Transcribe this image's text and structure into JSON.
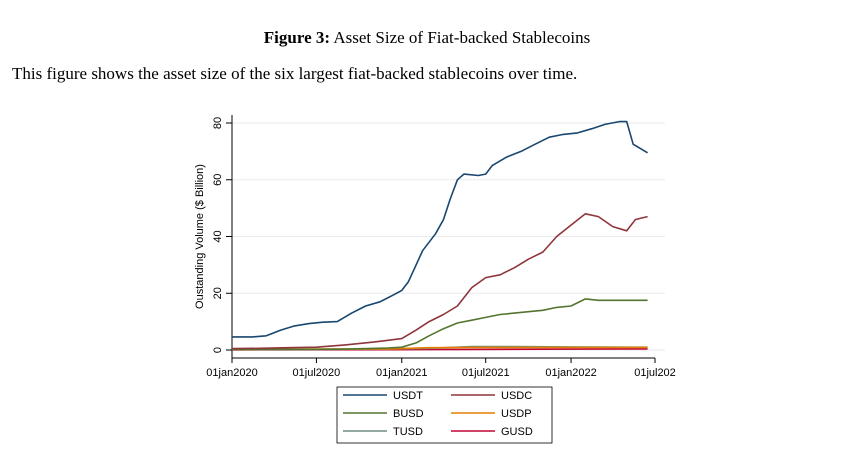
{
  "figure": {
    "label": "Figure 3:",
    "title": "Asset Size of Fiat-backed Stablecoins",
    "description": "This figure shows the asset size of the six largest fiat-backed stablecoins over time."
  },
  "chart_data": {
    "type": "line",
    "ylabel": "Oustanding Volume ($ Billion)",
    "xlabel": "",
    "ylim": [
      0,
      80
    ],
    "xlim": [
      "2020-01-01",
      "2022-07-01"
    ],
    "y_ticks": [
      "0",
      "20",
      "40",
      "60",
      "80"
    ],
    "x_ticks": [
      "01jan2020",
      "01jul2020",
      "01jan2021",
      "01jul2021",
      "01jan2022",
      "01jul202"
    ],
    "grid": true,
    "legend_position": "bottom",
    "series": [
      {
        "name": "USDT",
        "color": "#1a476f",
        "points": [
          [
            "2020-01-01",
            4.6
          ],
          [
            "2020-02-15",
            4.6
          ],
          [
            "2020-03-15",
            5.0
          ],
          [
            "2020-04-15",
            7.0
          ],
          [
            "2020-05-15",
            8.5
          ],
          [
            "2020-06-15",
            9.3
          ],
          [
            "2020-07-15",
            9.8
          ],
          [
            "2020-08-15",
            10.0
          ],
          [
            "2020-09-15",
            13.0
          ],
          [
            "2020-10-15",
            15.5
          ],
          [
            "2020-11-15",
            17.0
          ],
          [
            "2020-12-15",
            19.5
          ],
          [
            "2021-01-01",
            21.0
          ],
          [
            "2021-01-15",
            24.0
          ],
          [
            "2021-02-01",
            30.0
          ],
          [
            "2021-02-15",
            35.0
          ],
          [
            "2021-03-01",
            38.0
          ],
          [
            "2021-03-15",
            41.0
          ],
          [
            "2021-04-01",
            46.0
          ],
          [
            "2021-04-15",
            53.0
          ],
          [
            "2021-05-01",
            60.0
          ],
          [
            "2021-05-15",
            62.0
          ],
          [
            "2021-06-15",
            61.5
          ],
          [
            "2021-07-01",
            62.0
          ],
          [
            "2021-07-15",
            65.0
          ],
          [
            "2021-08-15",
            68.0
          ],
          [
            "2021-09-15",
            70.0
          ],
          [
            "2021-10-15",
            72.5
          ],
          [
            "2021-11-15",
            75.0
          ],
          [
            "2021-12-15",
            76.0
          ],
          [
            "2022-01-15",
            76.5
          ],
          [
            "2022-02-15",
            78.0
          ],
          [
            "2022-03-15",
            79.5
          ],
          [
            "2022-04-15",
            80.5
          ],
          [
            "2022-05-01",
            80.5
          ],
          [
            "2022-05-15",
            72.5
          ],
          [
            "2022-06-15",
            69.5
          ]
        ]
      },
      {
        "name": "USDC",
        "color": "#90353b",
        "points": [
          [
            "2020-01-01",
            0.5
          ],
          [
            "2020-03-01",
            0.6
          ],
          [
            "2020-05-01",
            0.8
          ],
          [
            "2020-07-01",
            1.0
          ],
          [
            "2020-09-01",
            1.8
          ],
          [
            "2020-11-01",
            2.8
          ],
          [
            "2021-01-01",
            4.0
          ],
          [
            "2021-02-01",
            7.0
          ],
          [
            "2021-03-01",
            10.0
          ],
          [
            "2021-04-01",
            12.5
          ],
          [
            "2021-05-01",
            15.5
          ],
          [
            "2021-06-01",
            22.0
          ],
          [
            "2021-07-01",
            25.5
          ],
          [
            "2021-08-01",
            26.5
          ],
          [
            "2021-09-01",
            29.0
          ],
          [
            "2021-10-01",
            32.0
          ],
          [
            "2021-11-01",
            34.5
          ],
          [
            "2021-12-01",
            40.0
          ],
          [
            "2022-01-01",
            44.0
          ],
          [
            "2022-02-01",
            48.0
          ],
          [
            "2022-03-01",
            47.0
          ],
          [
            "2022-04-01",
            43.5
          ],
          [
            "2022-05-01",
            42.0
          ],
          [
            "2022-05-20",
            46.0
          ],
          [
            "2022-06-15",
            47.0
          ]
        ]
      },
      {
        "name": "BUSD",
        "color": "#55752f",
        "points": [
          [
            "2020-01-01",
            0.2
          ],
          [
            "2020-06-01",
            0.2
          ],
          [
            "2020-09-01",
            0.3
          ],
          [
            "2020-12-01",
            0.7
          ],
          [
            "2021-01-01",
            1.0
          ],
          [
            "2021-02-01",
            2.5
          ],
          [
            "2021-03-01",
            5.0
          ],
          [
            "2021-04-01",
            7.5
          ],
          [
            "2021-05-01",
            9.5
          ],
          [
            "2021-06-01",
            10.5
          ],
          [
            "2021-07-01",
            11.5
          ],
          [
            "2021-08-01",
            12.5
          ],
          [
            "2021-09-01",
            13.0
          ],
          [
            "2021-10-01",
            13.5
          ],
          [
            "2021-11-01",
            14.0
          ],
          [
            "2021-12-01",
            15.0
          ],
          [
            "2022-01-01",
            15.5
          ],
          [
            "2022-02-01",
            18.0
          ],
          [
            "2022-03-01",
            17.5
          ],
          [
            "2022-04-01",
            17.5
          ],
          [
            "2022-05-01",
            17.5
          ],
          [
            "2022-06-15",
            17.5
          ]
        ]
      },
      {
        "name": "USDP",
        "color": "#e37e00",
        "points": [
          [
            "2020-01-01",
            0.2
          ],
          [
            "2020-06-01",
            0.3
          ],
          [
            "2020-12-01",
            0.4
          ],
          [
            "2021-03-01",
            0.8
          ],
          [
            "2021-06-01",
            0.9
          ],
          [
            "2021-09-01",
            0.9
          ],
          [
            "2022-01-01",
            0.9
          ],
          [
            "2022-06-15",
            0.9
          ]
        ]
      },
      {
        "name": "TUSD",
        "color": "#6e8e84",
        "points": [
          [
            "2020-01-01",
            0.1
          ],
          [
            "2020-06-01",
            0.2
          ],
          [
            "2020-12-01",
            0.3
          ],
          [
            "2021-03-01",
            0.6
          ],
          [
            "2021-06-01",
            1.2
          ],
          [
            "2021-09-01",
            1.2
          ],
          [
            "2022-01-01",
            1.1
          ],
          [
            "2022-06-15",
            1.0
          ]
        ]
      },
      {
        "name": "GUSD",
        "color": "#c10534",
        "points": [
          [
            "2020-01-01",
            0.05
          ],
          [
            "2020-12-01",
            0.1
          ],
          [
            "2021-06-01",
            0.2
          ],
          [
            "2022-01-01",
            0.3
          ],
          [
            "2022-06-15",
            0.4
          ]
        ]
      }
    ]
  }
}
